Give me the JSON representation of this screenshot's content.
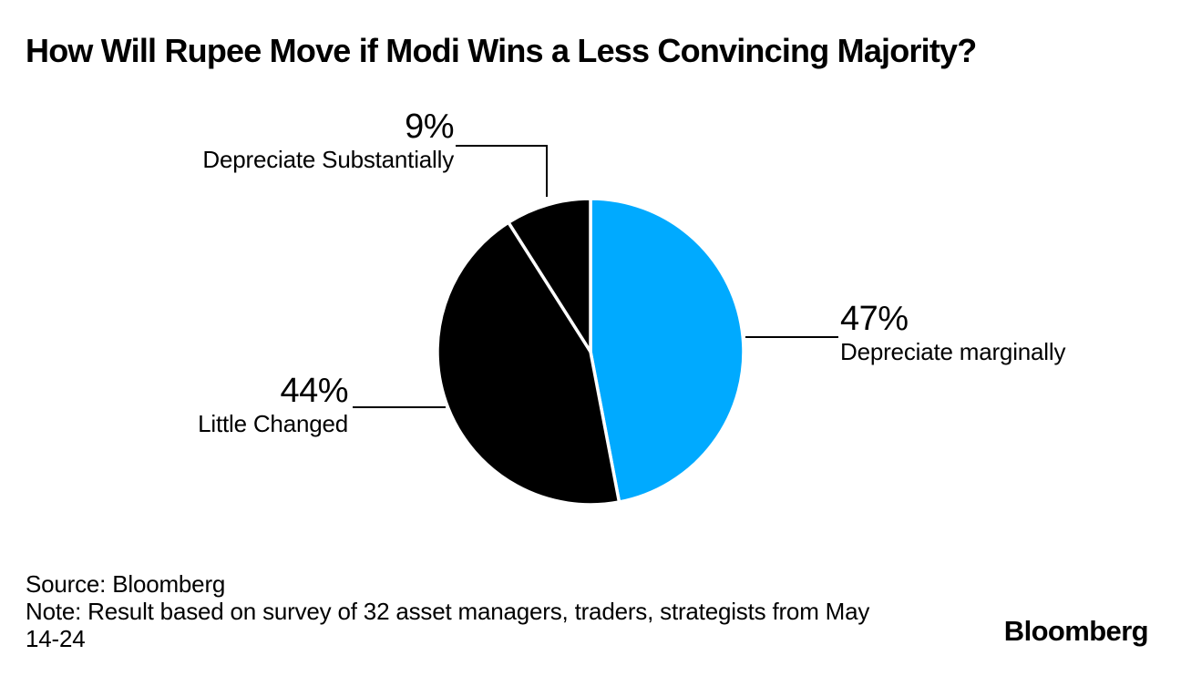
{
  "title": "How Will Rupee Move if Modi Wins a Less Convincing Majority?",
  "brand": "Bloomberg",
  "footnote": {
    "lines": [
      "Source: Bloomberg",
      "Note: Result based on survey of 32 asset managers, traders, strategists from May",
      "14-24"
    ]
  },
  "colors": {
    "accent_blue": "#00aaff",
    "slice_black": "#000000",
    "separator": "#ffffff",
    "leader_line": "#000000",
    "background": "#ffffff"
  },
  "chart_data": {
    "type": "pie",
    "title": "How Will Rupee Move if Modi Wins a Less Convincing Majority?",
    "start_angle_deg_from_12_oclock": 0,
    "direction": "clockwise",
    "separator_color": "#ffffff",
    "legend_position": "callouts",
    "slices": [
      {
        "label": "Depreciate marginally",
        "value": 47,
        "display": "47%",
        "color": "#00aaff"
      },
      {
        "label": "Little Changed",
        "value": 44,
        "display": "44%",
        "color": "#000000"
      },
      {
        "label": "Depreciate Substantially",
        "value": 9,
        "display": "9%",
        "color": "#000000"
      }
    ]
  }
}
